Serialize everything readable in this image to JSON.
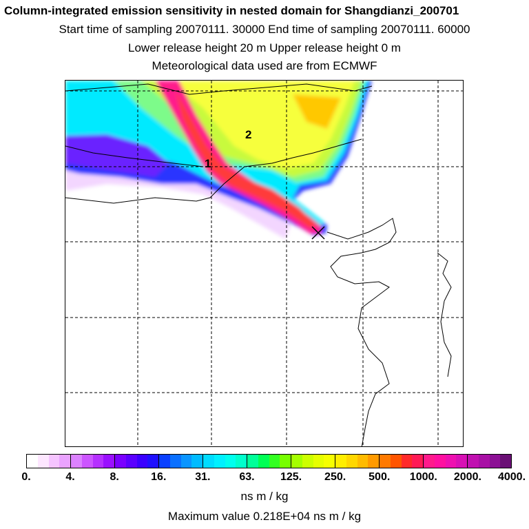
{
  "header": {
    "title": "Column-integrated emission sensitivity in nested domain for Shangdianzi_200701",
    "line2": "Start time of sampling 20070111. 30000     End time of sampling 20070111. 60000",
    "line3": "Lower release height   20 m          Upper release height    0 m",
    "line4": "Meteorological data used are from ECMWF"
  },
  "map": {
    "plume_labels": [
      "1",
      "2"
    ],
    "receptor_marker": "x-cross-icon",
    "colors": {
      "outer": "#1a3cff",
      "cyan": "#00f0ff",
      "lightgreen": "#7dfb8a",
      "yellowgreen": "#c8fa3c",
      "yellow": "#f6ff3c",
      "orange": "#ffc800",
      "magenta": "#ff1a8c",
      "red": "#ff2a2a",
      "violet": "#b040ff",
      "coastline": "#000000",
      "grid": "#000000"
    }
  },
  "colorbar": {
    "tick_labels": [
      "0.",
      "4.",
      "8.",
      "16.",
      "31.",
      "63.",
      "125.",
      "250.",
      "500.",
      "1000.",
      "2000.",
      "4000."
    ],
    "segment_colors": [
      "#ffffff",
      "#fde6ff",
      "#f5c4ff",
      "#eaa3ff",
      "#dc82ff",
      "#cc55ff",
      "#b530ff",
      "#9a10ff",
      "#7a00ff",
      "#5a00ff",
      "#3a00ff",
      "#1f10ff",
      "#0a40ff",
      "#0a70ff",
      "#0a95ff",
      "#00bbff",
      "#00dcff",
      "#00f0ff",
      "#00ffee",
      "#00ffcc",
      "#00ff99",
      "#00ff55",
      "#33ff22",
      "#77ff00",
      "#a5ff00",
      "#ccff00",
      "#e6ff00",
      "#f6ff00",
      "#ffee00",
      "#ffd700",
      "#ffbb00",
      "#ff9a00",
      "#ff7a00",
      "#ff5500",
      "#ff2a2a",
      "#ff1a55",
      "#ff1a8c",
      "#ff10a0",
      "#ee10b0",
      "#d810b5",
      "#c010b0",
      "#a810a5",
      "#8c1095",
      "#6a1075"
    ],
    "unit": "ns m / kg"
  },
  "footer": {
    "max_value": "Maximum value  0.218E+04 ns m / kg"
  }
}
